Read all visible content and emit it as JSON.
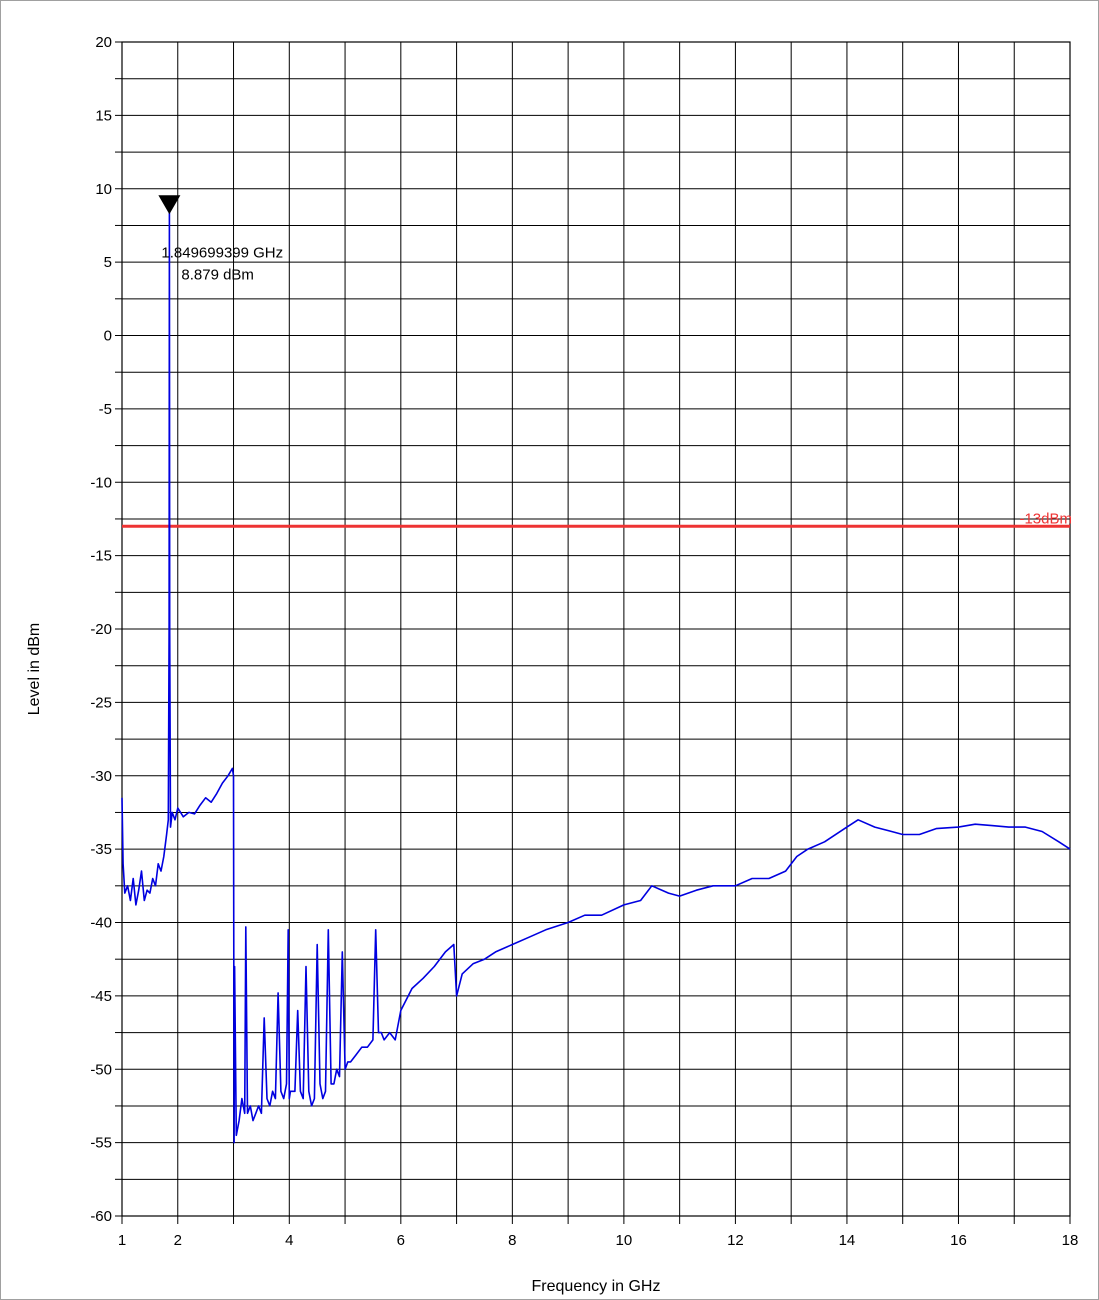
{
  "chart_data": {
    "type": "line",
    "xlabel": "Frequency in GHz",
    "ylabel": "Level in dBm",
    "xlim": [
      1,
      18
    ],
    "ylim": [
      -60,
      20
    ],
    "x_ticks": [
      1,
      2,
      4,
      6,
      8,
      10,
      12,
      14,
      16,
      18
    ],
    "y_ticks": [
      20,
      15,
      10,
      5,
      0,
      -5,
      -10,
      -15,
      -20,
      -25,
      -30,
      -35,
      -40,
      -45,
      -50,
      -55,
      -60
    ],
    "grid": true,
    "series": [
      {
        "color": "#0000e0",
        "x": [
          1.0,
          1.02,
          1.05,
          1.1,
          1.15,
          1.2,
          1.25,
          1.3,
          1.35,
          1.4,
          1.45,
          1.5,
          1.55,
          1.6,
          1.65,
          1.7,
          1.75,
          1.8,
          1.83,
          1.845,
          1.85,
          1.855,
          1.87,
          1.9,
          1.95,
          2.0,
          2.1,
          2.2,
          2.3,
          2.4,
          2.5,
          2.6,
          2.7,
          2.8,
          2.9,
          2.98,
          3.0,
          3.01,
          3.02,
          3.05,
          3.1,
          3.15,
          3.2,
          3.22,
          3.25,
          3.3,
          3.35,
          3.4,
          3.45,
          3.5,
          3.55,
          3.6,
          3.65,
          3.7,
          3.75,
          3.8,
          3.85,
          3.9,
          3.95,
          3.98,
          4.0,
          4.02,
          4.1,
          4.15,
          4.2,
          4.25,
          4.3,
          4.35,
          4.4,
          4.45,
          4.5,
          4.55,
          4.6,
          4.65,
          4.7,
          4.75,
          4.8,
          4.85,
          4.9,
          4.95,
          5.0,
          5.05,
          5.1,
          5.2,
          5.3,
          5.4,
          5.5,
          5.55,
          5.6,
          5.65,
          5.7,
          5.8,
          5.9,
          6.0,
          6.2,
          6.4,
          6.6,
          6.8,
          6.95,
          7.0,
          7.1,
          7.3,
          7.5,
          7.7,
          8.0,
          8.3,
          8.6,
          9.0,
          9.3,
          9.6,
          10.0,
          10.3,
          10.5,
          10.8,
          11.0,
          11.3,
          11.6,
          12.0,
          12.3,
          12.6,
          12.9,
          13.1,
          13.3,
          13.6,
          14.0,
          14.2,
          14.5,
          14.8,
          15.0,
          15.3,
          15.6,
          16.0,
          16.3,
          16.6,
          16.9,
          17.2,
          17.5,
          17.8,
          18.0
        ],
        "y": [
          -31.5,
          -36,
          -38,
          -37.5,
          -38.5,
          -37,
          -38.8,
          -37.8,
          -36.5,
          -38.5,
          -37.8,
          -38,
          -37,
          -37.5,
          -36,
          -36.5,
          -35.5,
          -34,
          -33,
          -20,
          8.9,
          -20,
          -33.5,
          -32.5,
          -33,
          -32.2,
          -32.8,
          -32.5,
          -32.6,
          -32,
          -31.5,
          -31.8,
          -31.2,
          -30.5,
          -30,
          -29.5,
          -30,
          -55,
          -43,
          -54.5,
          -53.5,
          -52,
          -53,
          -40.3,
          -53,
          -52.5,
          -53.5,
          -53,
          -52.5,
          -53,
          -46.5,
          -52,
          -52.5,
          -51.5,
          -52,
          -44.8,
          -51.5,
          -52,
          -51,
          -40.5,
          -52,
          -51.5,
          -51.5,
          -46,
          -51.5,
          -52,
          -43,
          -51.5,
          -52.5,
          -52,
          -41.5,
          -51,
          -52,
          -51.5,
          -40.5,
          -51,
          -51,
          -50,
          -50.5,
          -42,
          -50,
          -49.5,
          -49.5,
          -49,
          -48.5,
          -48.5,
          -48,
          -40.5,
          -47.5,
          -47.5,
          -48,
          -47.5,
          -48,
          -46,
          -44.5,
          -43.8,
          -43,
          -42,
          -41.5,
          -45,
          -43.5,
          -42.8,
          -42.5,
          -42,
          -41.5,
          -41,
          -40.5,
          -40,
          -39.5,
          -39.5,
          -38.8,
          -38.5,
          -37.5,
          -38,
          -38.2,
          -37.8,
          -37.5,
          -37.5,
          -37,
          -37,
          -36.5,
          -35.5,
          -35,
          -34.5,
          -33.5,
          -33,
          -33.5,
          -33.8,
          -34,
          -34,
          -33.6,
          -33.5,
          -33.3,
          -33.4,
          -33.5,
          -33.5,
          -33.8,
          -34.5,
          -35
        ]
      }
    ],
    "limit_line": {
      "value": -13,
      "label": "-13dBm",
      "color": "#ee3333"
    },
    "marker": {
      "x": 1.849699399,
      "y": 8.879,
      "freq_text": "1.849699399 GHz",
      "level_text": "8.879 dBm"
    }
  }
}
